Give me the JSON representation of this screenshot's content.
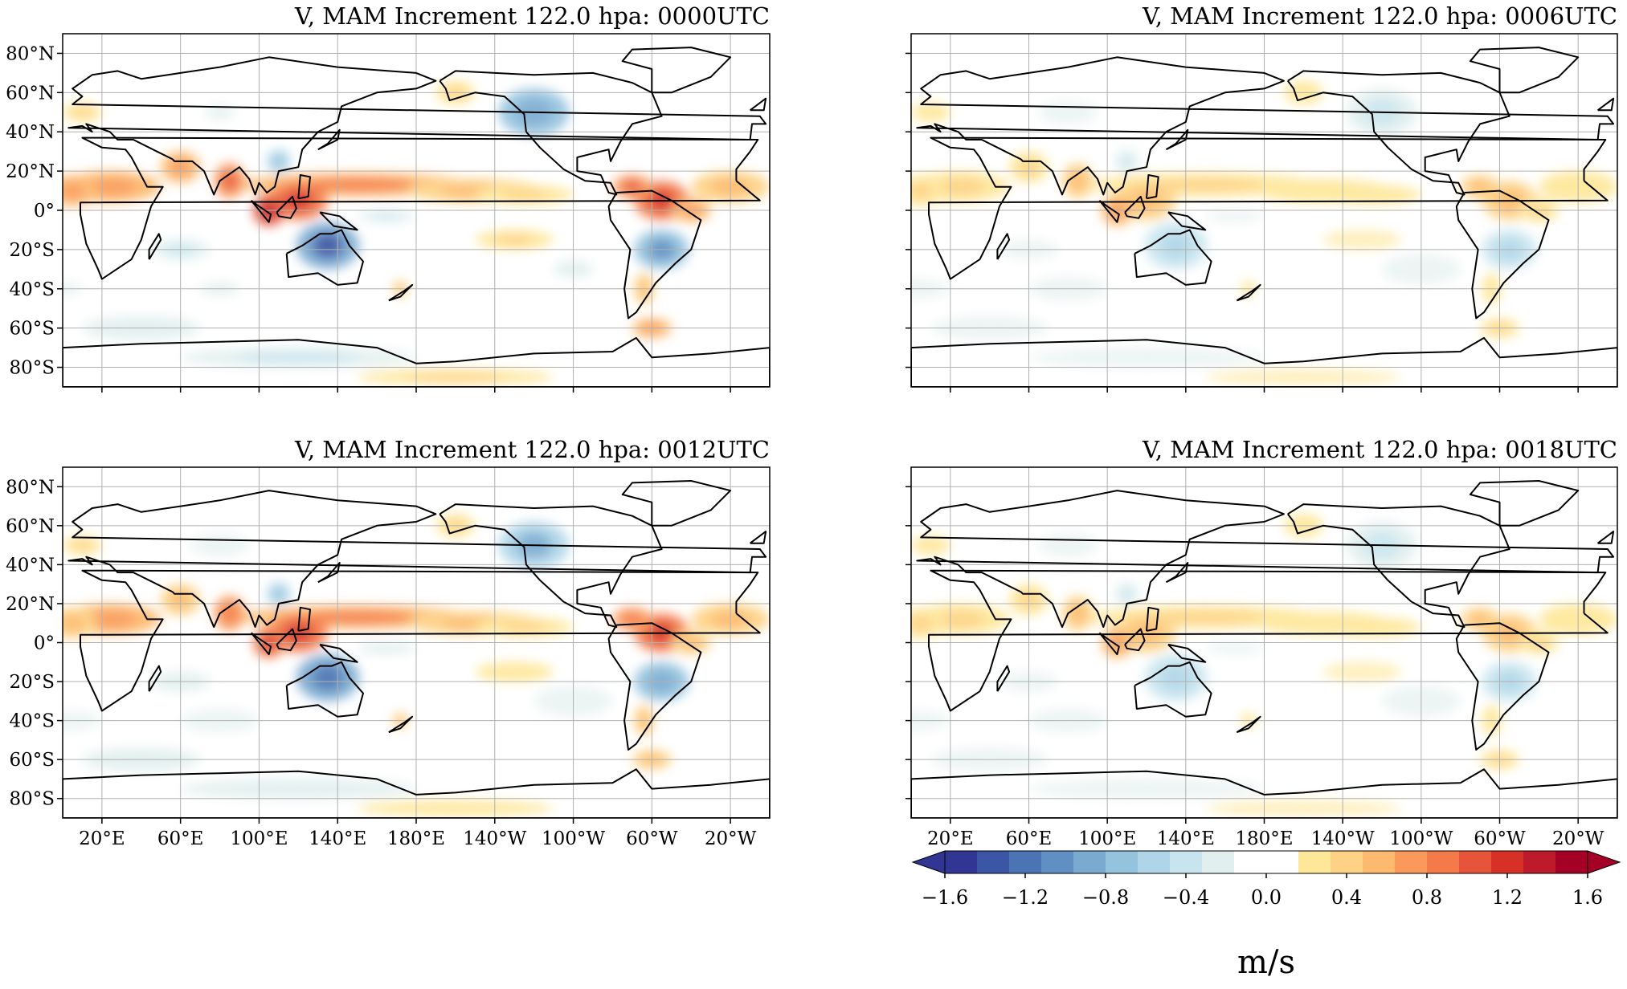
{
  "figure": {
    "panels": [
      {
        "id": "p0000",
        "title": "V, MAM Increment 122.0 hpa: 0000UTC",
        "amp": 1.0
      },
      {
        "id": "p0006",
        "title": "V, MAM Increment 122.0 hpa: 0006UTC",
        "amp": 0.5
      },
      {
        "id": "p0012",
        "title": "V, MAM Increment 122.0 hpa: 0012UTC",
        "amp": 0.95
      },
      {
        "id": "p0018",
        "title": "V, MAM Increment 122.0 hpa: 0018UTC",
        "amp": 0.5
      }
    ],
    "lat_labels": [
      "80°N",
      "60°N",
      "40°N",
      "20°N",
      "0°",
      "20°S",
      "40°S",
      "60°S",
      "80°S"
    ],
    "lat_values": [
      80,
      60,
      40,
      20,
      0,
      -20,
      -40,
      -60,
      -80
    ],
    "lon_labels": [
      "20°E",
      "60°E",
      "100°E",
      "140°E",
      "180°E",
      "140°W",
      "100°W",
      "60°W",
      "20°W"
    ],
    "lon_values": [
      20,
      60,
      100,
      140,
      180,
      220,
      260,
      300,
      340
    ],
    "lon_range": [
      0,
      360
    ],
    "lat_range": [
      -90,
      90
    ],
    "colorbar": {
      "ticks": [
        "−1.6",
        "−1.2",
        "−0.8",
        "−0.4",
        "0.0",
        "0.4",
        "0.8",
        "1.2",
        "1.6"
      ],
      "tick_values": [
        -1.6,
        -1.2,
        -0.8,
        -0.4,
        0.0,
        0.4,
        0.8,
        1.2,
        1.6
      ],
      "unit": "m/s",
      "colors": [
        "#313695",
        "#3b56a5",
        "#4a74b4",
        "#5f8fc3",
        "#7aaad0",
        "#94c3de",
        "#afd6e8",
        "#c8e5ef",
        "#e1efee",
        "#ffffff",
        "#ffffff",
        "#fee799",
        "#fdd284",
        "#fdb96d",
        "#fa9a5a",
        "#f47a49",
        "#e6553a",
        "#d73027",
        "#bd1a2b",
        "#a50026"
      ],
      "extend": "both"
    },
    "coastline_color": "#000000",
    "grid_color": "#b0b0b0"
  }
}
